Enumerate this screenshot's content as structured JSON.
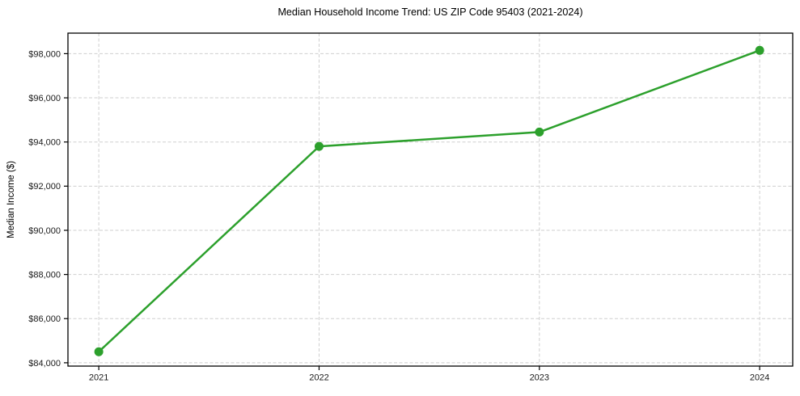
{
  "chart_data": {
    "type": "line",
    "title": "Median Household Income Trend: US ZIP Code 95403 (2021-2024)",
    "xlabel": "",
    "ylabel": "Median Income ($)",
    "x": [
      2021,
      2022,
      2023,
      2024
    ],
    "x_tick_labels": [
      "2021",
      "2022",
      "2023",
      "2024"
    ],
    "series": [
      {
        "name": "Median Household Income",
        "values": [
          84500,
          93800,
          94450,
          98150
        ],
        "color": "#2ca02c"
      }
    ],
    "y_ticks": [
      84000,
      86000,
      88000,
      90000,
      92000,
      94000,
      96000,
      98000
    ],
    "y_tick_labels": [
      "$84,000",
      "$86,000",
      "$88,000",
      "$90,000",
      "$92,000",
      "$94,000",
      "$96,000",
      "$98,000"
    ],
    "xlim": [
      2020.86,
      2024.15
    ],
    "ylim": [
      83850,
      98930
    ],
    "grid": true,
    "grid_style": "dashed",
    "grid_color": "#cfcfcf",
    "axis_color": "#000000",
    "background_color": "#ffffff",
    "marker": "circle",
    "marker_diameter": 11,
    "line_width": 2.5,
    "legend_position": "none"
  }
}
